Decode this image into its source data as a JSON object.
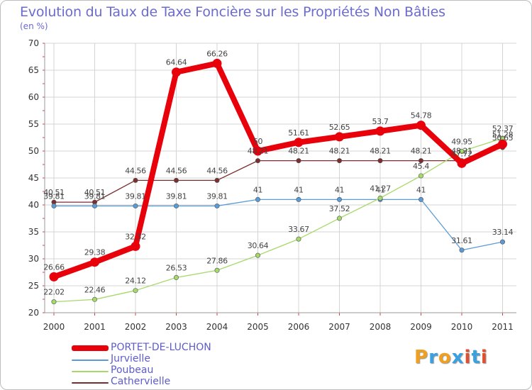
{
  "header": {
    "title": "Evolution du Taux de Taxe Foncière sur les Propriétés Non Bâties",
    "unit": "(en %)"
  },
  "brand": {
    "letters": [
      "P",
      "r",
      "o",
      "x",
      "i",
      "t",
      "i"
    ],
    "colors": [
      "#f0a020",
      "#3aa0e0",
      "#f0a020",
      "#3aa0e0",
      "#e05030",
      "#3aa0e0",
      "#e05030"
    ]
  },
  "chart_data": {
    "type": "line",
    "x": [
      "2000",
      "2001",
      "2002",
      "2003",
      "2004",
      "2005",
      "2006",
      "2007",
      "2008",
      "2009",
      "2010",
      "2011"
    ],
    "ylim": [
      20,
      70
    ],
    "yticks": [
      "20",
      "25",
      "30",
      "35",
      "40",
      "45",
      "50",
      "55",
      "60",
      "65",
      "70"
    ],
    "grid": true,
    "legend_position": "bottom-left",
    "series": [
      {
        "name": "PORTET-DE-LUCHON",
        "color": "#e8000b",
        "width": 8,
        "values": [
          26.66,
          29.38,
          32.32,
          64.64,
          66.26,
          50,
          51.61,
          52.65,
          53.7,
          54.78,
          47.72,
          51.28
        ],
        "labels": [
          "26.66",
          "29.38",
          "32.32",
          "64.64",
          "66.26",
          "50",
          "51.61",
          "52.65",
          "53.7",
          "54.78",
          "47.72",
          "51.28"
        ]
      },
      {
        "name": "Jurvielle",
        "color": "#5b9bd5",
        "width": 1.3,
        "values": [
          39.81,
          39.81,
          39.81,
          39.81,
          39.81,
          41,
          41,
          41,
          41,
          41,
          31.61,
          33.14
        ],
        "labels": [
          "39.81",
          "39.81",
          "39.81",
          "39.81",
          "39.81",
          "41",
          "41",
          "41",
          "41",
          "41",
          "31.61",
          "33.14"
        ]
      },
      {
        "name": "Poubeau",
        "color": "#a6d96a",
        "width": 1.3,
        "values": [
          22.02,
          22.46,
          24.12,
          26.53,
          27.86,
          30.64,
          33.67,
          37.52,
          41.27,
          45.4,
          49.95,
          52.37
        ],
        "labels": [
          "22.02",
          "22.46",
          "24.12",
          "26.53",
          "27.86",
          "30.64",
          "33.67",
          "37.52",
          "41.27",
          "45.4",
          "49.95",
          "52.37"
        ]
      },
      {
        "name": "Cathervielle",
        "color": "#7a2e2e",
        "width": 1.3,
        "values": [
          40.51,
          40.51,
          44.56,
          44.56,
          44.56,
          48.21,
          48.21,
          48.21,
          48.21,
          48.21,
          48.21,
          50.65
        ],
        "labels": [
          "40.51",
          "40.51",
          "44.56",
          "44.56",
          "44.56",
          "48.21",
          "48.21",
          "48.21",
          "48.21",
          "48.21",
          "48.21",
          "50.65"
        ]
      }
    ]
  }
}
